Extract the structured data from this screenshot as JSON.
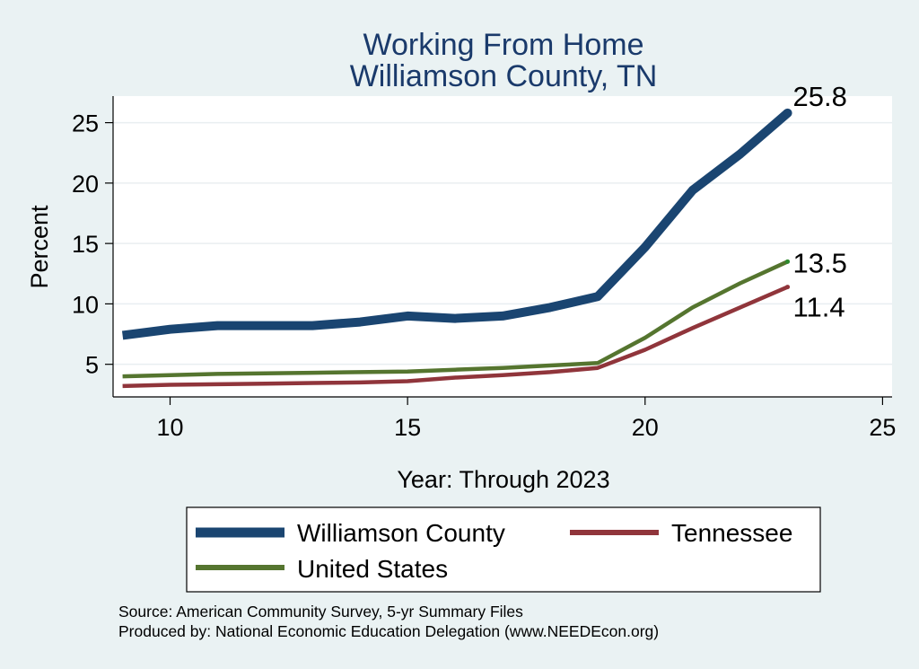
{
  "chart_data": {
    "type": "line",
    "title": [
      "Working From Home",
      "Williamson County, TN"
    ],
    "xlabel": "Year: Through 2023",
    "ylabel": "Percent",
    "xlim": [
      8.8,
      25.2
    ],
    "ylim": [
      2.3,
      27.2
    ],
    "xticks": [
      10,
      15,
      20,
      25
    ],
    "yticks": [
      5,
      10,
      15,
      20,
      25
    ],
    "grid": "horizontal",
    "legend_position": "bottom",
    "x": [
      9,
      10,
      11,
      12,
      13,
      14,
      15,
      16,
      17,
      18,
      19,
      20,
      21,
      22,
      23
    ],
    "series": [
      {
        "name": "Williamson County",
        "color": "#1a4571",
        "values": [
          7.4,
          7.9,
          8.2,
          8.2,
          8.2,
          8.5,
          9.0,
          8.8,
          9.0,
          9.7,
          10.6,
          14.7,
          19.4,
          22.4,
          25.8
        ],
        "end_label": "25.8"
      },
      {
        "name": "Tennessee",
        "color": "#90353b",
        "values": [
          3.2,
          3.3,
          3.35,
          3.4,
          3.45,
          3.5,
          3.6,
          3.9,
          4.1,
          4.35,
          4.7,
          6.2,
          8.0,
          9.7,
          11.4
        ],
        "end_label": "11.4"
      },
      {
        "name": "United States",
        "color": "#55752f",
        "values": [
          4.0,
          4.1,
          4.2,
          4.25,
          4.3,
          4.35,
          4.4,
          4.55,
          4.7,
          4.9,
          5.1,
          7.2,
          9.7,
          11.7,
          13.5
        ],
        "end_label": "13.5"
      }
    ],
    "source_notes": [
      "Source: American Community Survey, 5-yr Summary Files",
      "Produced by: National Economic Education Delegation (www.NEEDEcon.org)"
    ]
  }
}
